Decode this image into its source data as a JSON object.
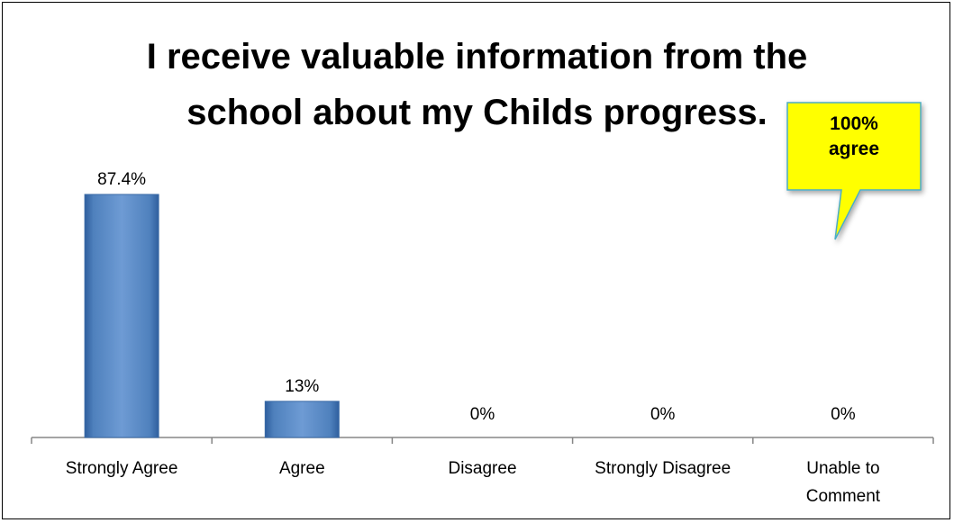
{
  "chart_data": {
    "type": "bar",
    "title_lines": [
      "I receive valuable information from the",
      "school about my Childs progress."
    ],
    "categories": [
      "Strongly Agree",
      "Agree",
      "Disagree",
      "Strongly Disagree",
      "Unable to Comment"
    ],
    "category_lines": [
      [
        "Strongly Agree"
      ],
      [
        "Agree"
      ],
      [
        "Disagree"
      ],
      [
        "Strongly Disagree"
      ],
      [
        "Unable to",
        "Comment"
      ]
    ],
    "values": [
      87.4,
      13,
      0,
      0,
      0
    ],
    "data_labels": [
      "87.4%",
      "13%",
      "0%",
      "0%",
      "0%"
    ],
    "ylim": [
      0,
      100
    ],
    "grid": false,
    "legend": "none",
    "bar_color": "#4f81bd",
    "annotation": {
      "lines": [
        "100%",
        "agree"
      ],
      "color": "#ffff00",
      "border_color": "#4bacc6"
    }
  }
}
